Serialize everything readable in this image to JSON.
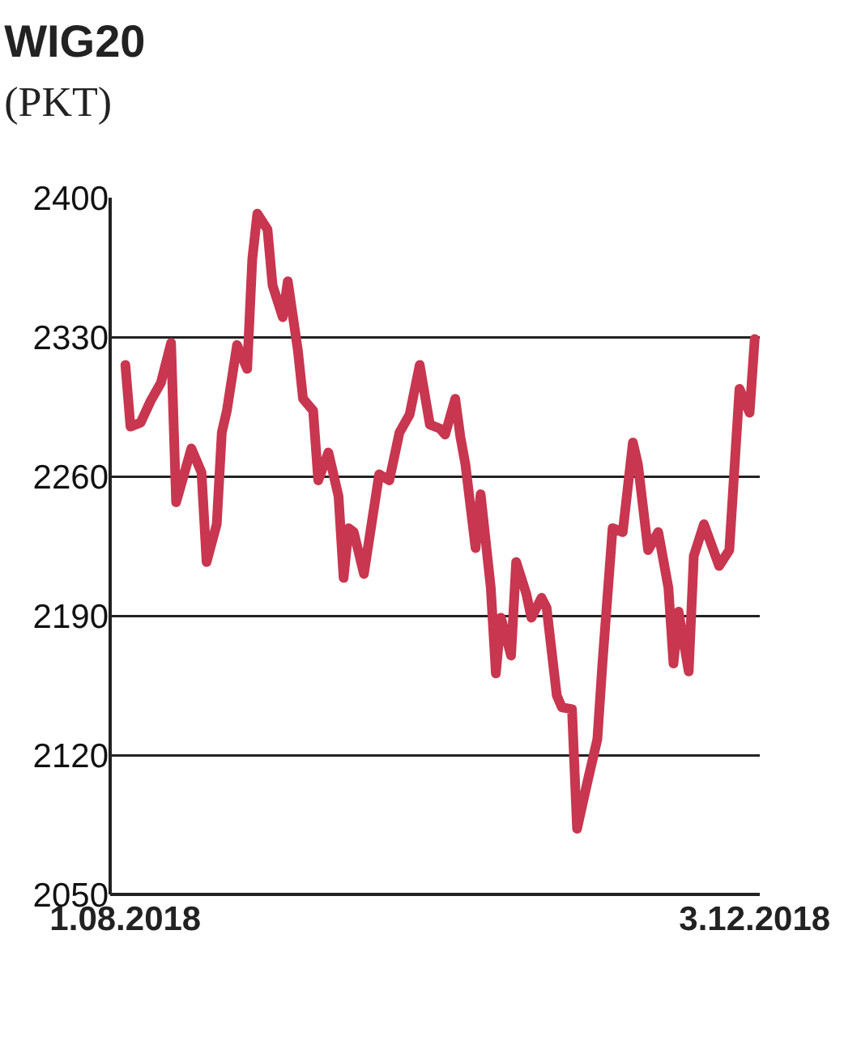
{
  "chart_data": {
    "type": "line",
    "title": "WIG20",
    "subtitle": "(PKT)",
    "x": [
      "2018-08-01",
      "2018-08-02",
      "2018-08-04",
      "2018-08-06",
      "2018-08-08",
      "2018-08-10",
      "2018-08-11",
      "2018-08-14",
      "2018-08-16",
      "2018-08-17",
      "2018-08-19",
      "2018-08-20",
      "2018-08-21",
      "2018-08-23",
      "2018-08-25",
      "2018-08-26",
      "2018-08-27",
      "2018-08-29",
      "2018-08-30",
      "2018-09-01",
      "2018-09-02",
      "2018-09-04",
      "2018-09-05",
      "2018-09-07",
      "2018-09-08",
      "2018-09-10",
      "2018-09-12",
      "2018-09-13",
      "2018-09-14",
      "2018-09-15",
      "2018-09-17",
      "2018-09-20",
      "2018-09-22",
      "2018-09-24",
      "2018-09-26",
      "2018-09-28",
      "2018-09-30",
      "2018-10-02",
      "2018-10-03",
      "2018-10-05",
      "2018-10-06",
      "2018-10-07",
      "2018-10-09",
      "2018-10-10",
      "2018-10-12",
      "2018-10-13",
      "2018-10-14",
      "2018-10-16",
      "2018-10-17",
      "2018-10-19",
      "2018-10-20",
      "2018-10-22",
      "2018-10-23",
      "2018-10-25",
      "2018-10-26",
      "2018-10-28",
      "2018-10-29",
      "2018-10-31",
      "2018-11-02",
      "2018-11-03",
      "2018-11-05",
      "2018-11-07",
      "2018-11-09",
      "2018-11-10",
      "2018-11-12",
      "2018-11-14",
      "2018-11-16",
      "2018-11-17",
      "2018-11-18",
      "2018-11-20",
      "2018-11-21",
      "2018-11-23",
      "2018-11-26",
      "2018-11-28",
      "2018-11-30",
      "2018-12-02",
      "2018-12-03"
    ],
    "series": [
      {
        "color": "#c8364f",
        "values": [
          2316,
          2285,
          2287,
          2298,
          2307,
          2327,
          2247,
          2274,
          2262,
          2217,
          2236,
          2282,
          2293,
          2326,
          2314,
          2369,
          2392,
          2384,
          2356,
          2340,
          2358,
          2323,
          2299,
          2293,
          2258,
          2272,
          2250,
          2209,
          2234,
          2232,
          2211,
          2261,
          2258,
          2282,
          2291,
          2316,
          2286,
          2284,
          2281,
          2299,
          2280,
          2266,
          2224,
          2251,
          2204,
          2161,
          2189,
          2170,
          2217,
          2201,
          2189,
          2199,
          2194,
          2150,
          2144,
          2143,
          2083,
          2106,
          2128,
          2166,
          2234,
          2232,
          2277,
          2266,
          2223,
          2232,
          2204,
          2166,
          2192,
          2162,
          2220,
          2236,
          2215,
          2223,
          2304,
          2292,
          2329
        ]
      }
    ],
    "xlim": [
      "2018-07-29",
      "2018-12-04"
    ],
    "xticks": [
      {
        "value": "2018-08-01",
        "label": "1.08.2018"
      },
      {
        "value": "2018-12-03",
        "label": "3.12.2018"
      }
    ],
    "ylim": [
      2050,
      2400
    ],
    "yticks": [
      2050,
      2120,
      2190,
      2260,
      2330,
      2400
    ],
    "grid": "y",
    "marker": "none",
    "line_style": "solid"
  }
}
